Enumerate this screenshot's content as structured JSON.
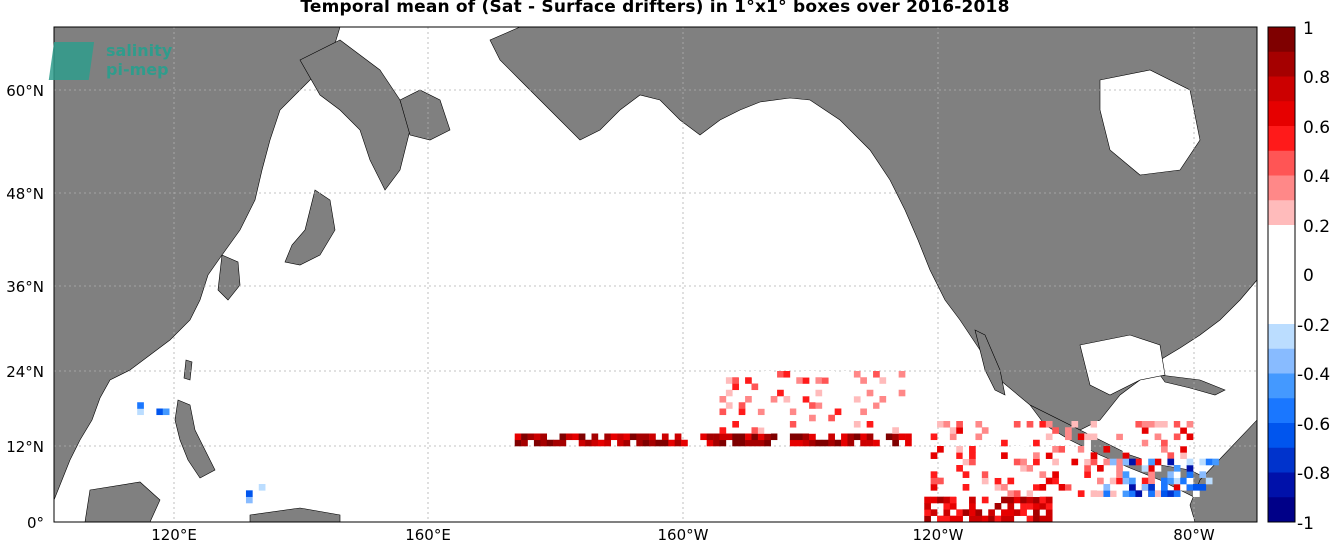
{
  "title": "Temporal mean of (Sat - Surface drifters) in 1°x1° boxes over 2016-2018",
  "logo": {
    "line1": "salinity",
    "line2": "pi-mep"
  },
  "map": {
    "projection": "equirectangular",
    "lon_range": [
      100,
      288
    ],
    "lat_range": [
      0,
      68
    ],
    "land_color": "#808080",
    "ocean_color": "#ffffff",
    "grid": true,
    "lat_ticks": [
      {
        "value": 0,
        "label": "0°"
      },
      {
        "value": 12,
        "label": "12°N"
      },
      {
        "value": 24,
        "label": "24°N"
      },
      {
        "value": 36,
        "label": "36°N"
      },
      {
        "value": 48,
        "label": "48°N"
      },
      {
        "value": 60,
        "label": "60°N"
      }
    ],
    "lon_ticks": [
      {
        "value": 120,
        "label": "120°E"
      },
      {
        "value": 160,
        "label": "160°E"
      },
      {
        "value": 200,
        "label": "160°W"
      },
      {
        "value": 240,
        "label": "120°W"
      },
      {
        "value": 280,
        "label": "80°W"
      }
    ]
  },
  "colorbar": {
    "min": -1,
    "max": 1,
    "step": 0.1,
    "ticks": [
      {
        "value": 1,
        "label": "1"
      },
      {
        "value": 0.8,
        "label": "0.8"
      },
      {
        "value": 0.6,
        "label": "0.6"
      },
      {
        "value": 0.4,
        "label": "0.4"
      },
      {
        "value": 0.2,
        "label": "0.2"
      },
      {
        "value": 0,
        "label": "0"
      },
      {
        "value": -0.2,
        "label": "-0.2"
      },
      {
        "value": -0.4,
        "label": "-0.4"
      },
      {
        "value": -0.6,
        "label": "-0.6"
      },
      {
        "value": -0.8,
        "label": "-0.8"
      },
      {
        "value": -1,
        "label": "-1"
      }
    ],
    "colors": [
      "#7f0000",
      "#a50000",
      "#cc0000",
      "#e60000",
      "#ff1a1a",
      "#ff5555",
      "#ff8888",
      "#ffbbbb",
      "#ffffff",
      "#ffffff",
      "#ffffff",
      "#ffffff",
      "#bbddff",
      "#88bbff",
      "#4499ff",
      "#1a77ff",
      "#0055ee",
      "#0033cc",
      "#0011aa",
      "#000088"
    ]
  },
  "chart_data": {
    "type": "heatmap",
    "title": "Temporal mean of (Sat - Surface drifters) in 1°x1° boxes over 2016-2018",
    "xlabel": "",
    "ylabel": "",
    "x_range_lon": [
      100,
      288
    ],
    "y_range_lat": [
      0,
      68
    ],
    "value_range": [
      -1,
      1
    ],
    "regions": [
      {
        "lon": [
          172,
          234
        ],
        "lat": [
          12,
          14
        ],
        "approx_value": 0.8
      },
      {
        "lon": [
          236,
          256
        ],
        "lat": [
          0,
          4
        ],
        "approx_value": 0.7
      },
      {
        "lon": [
          237,
          278
        ],
        "lat": [
          4,
          16
        ],
        "approx_value": 0.3
      },
      {
        "lon": [
          264,
          282
        ],
        "lat": [
          4,
          10
        ],
        "approx_value": -0.5
      },
      {
        "lon": [
          204,
          233
        ],
        "lat": [
          14,
          24
        ],
        "approx_value": 0.2
      },
      {
        "lon": [
          112,
          118
        ],
        "lat": [
          17,
          20
        ],
        "approx_value": -0.3
      },
      {
        "lon": [
          130,
          134
        ],
        "lat": [
          3,
          6
        ],
        "approx_value": -0.4
      }
    ]
  }
}
